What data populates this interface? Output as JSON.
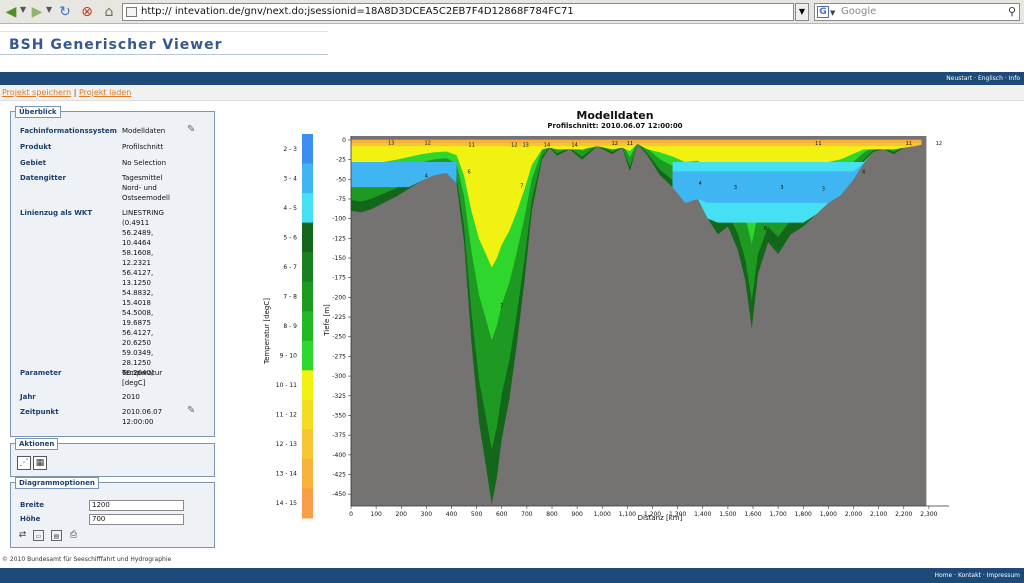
{
  "browser": {
    "url": "http://                intevation.de/gnv/next.do;jsessionid=18A8D3DCEA5C2EB7F4D12868F784FC71",
    "search_placeholder": "Google",
    "search_engine": "G"
  },
  "app": {
    "title": "BSH Generischer Viewer",
    "top_nav": "Neustart · Englisch · Info",
    "project_save": "Projekt speichern",
    "project_separator": "|",
    "project_load": "Projekt laden"
  },
  "overview": {
    "legend": "Überblick",
    "rows": [
      {
        "label": "Fachinformationssystem",
        "value": "Modelldaten"
      },
      {
        "label": "Produkt",
        "value": "Profilschnitt"
      },
      {
        "label": "Gebiet",
        "value": "No Selection"
      },
      {
        "label": "Datengitter",
        "value": "Tagesmittel\nNord- und\nOstseemodell"
      },
      {
        "label": "Linienzug als WKT",
        "value": "LINESTRING\n(0.4911\n56.2489,\n10.4464\n58.1608,\n12.2321\n56.4127,\n13.1250\n54.8832,\n15.4018\n54.5008,\n19.6875\n56.4127,\n20.6250\n59.0349,\n28.1250\n60.2640)"
      },
      {
        "label": "Parameter",
        "value": "Temperatur\n[degC]"
      },
      {
        "label": "Jahr",
        "value": "2010"
      },
      {
        "label": "Zeitpunkt",
        "value": "2010.06.07\n12:00:00"
      }
    ]
  },
  "actions": {
    "legend": "Aktionen"
  },
  "diagram_options": {
    "legend": "Diagrammoptionen",
    "width_label": "Breite",
    "width_value": "1200",
    "height_label": "Höhe",
    "height_value": "700"
  },
  "footer": {
    "copyright": "© 2010 Bundesamt für Seeschifffahrt und Hydrographie",
    "nav": "Home · Kontakt · Impressum"
  },
  "colors": {
    "navy_bar": "#1d4a78",
    "title_blue": "#35588f",
    "link_orange": "#e07a22",
    "seabed_gray": "#747371"
  },
  "chart_data": {
    "type": "heatmap",
    "title": "Modelldaten",
    "subtitle": "Profilschnitt: 2010.06.07 12:00:00",
    "xlabel": "Distanz [km]",
    "ylabel": "Tiefe [m]",
    "xlim": [
      0,
      2380
    ],
    "ylim": [
      -465,
      5
    ],
    "x_ticks": [
      "0",
      "100",
      "200",
      "300",
      "400",
      "500",
      "600",
      "700",
      "800",
      "900",
      "1,000",
      "1,100",
      "1,200",
      "1,300",
      "1,400",
      "1,500",
      "1,600",
      "1,700",
      "1,800",
      "1,900",
      "2,000",
      "2,100",
      "2,200",
      "2,300"
    ],
    "y_ticks": [
      "0",
      "-25",
      "-50",
      "-75",
      "-100",
      "-125",
      "-150",
      "-175",
      "-200",
      "-225",
      "-250",
      "-275",
      "-300",
      "-325",
      "-350",
      "-375",
      "-400",
      "-425",
      "-450"
    ],
    "colorbar": {
      "label": "Temperatur [degC]",
      "classes": [
        {
          "range": "2 - 3",
          "color": "#3c8ff0"
        },
        {
          "range": "3 - 4",
          "color": "#3fb6f2"
        },
        {
          "range": "4 - 5",
          "color": "#45e0f4"
        },
        {
          "range": "5 - 6",
          "color": "#14661a"
        },
        {
          "range": "6 - 7",
          "color": "#1a7f1f"
        },
        {
          "range": "7 - 8",
          "color": "#1e9a22"
        },
        {
          "range": "8 - 9",
          "color": "#22b826"
        },
        {
          "range": "9 - 10",
          "color": "#2ed62e"
        },
        {
          "range": "10 - 11",
          "color": "#f2f212"
        },
        {
          "range": "11 - 12",
          "color": "#f4dc24"
        },
        {
          "range": "12 - 13",
          "color": "#f6c632"
        },
        {
          "range": "13 - 14",
          "color": "#f8b23c"
        },
        {
          "range": "14 - 15",
          "color": "#f89e48"
        }
      ]
    },
    "bathymetry": [
      {
        "x": 0,
        "depth": -90
      },
      {
        "x": 40,
        "depth": -92
      },
      {
        "x": 80,
        "depth": -88
      },
      {
        "x": 130,
        "depth": -80
      },
      {
        "x": 180,
        "depth": -72
      },
      {
        "x": 230,
        "depth": -62
      },
      {
        "x": 280,
        "depth": -52
      },
      {
        "x": 330,
        "depth": -45
      },
      {
        "x": 380,
        "depth": -42
      },
      {
        "x": 420,
        "depth": -55
      },
      {
        "x": 450,
        "depth": -130
      },
      {
        "x": 480,
        "depth": -260
      },
      {
        "x": 510,
        "depth": -360
      },
      {
        "x": 540,
        "depth": -420
      },
      {
        "x": 560,
        "depth": -463
      },
      {
        "x": 580,
        "depth": -430
      },
      {
        "x": 600,
        "depth": -380
      },
      {
        "x": 630,
        "depth": -330
      },
      {
        "x": 660,
        "depth": -260
      },
      {
        "x": 690,
        "depth": -180
      },
      {
        "x": 720,
        "depth": -90
      },
      {
        "x": 760,
        "depth": -25
      },
      {
        "x": 790,
        "depth": -10
      },
      {
        "x": 820,
        "depth": -20
      },
      {
        "x": 870,
        "depth": -12
      },
      {
        "x": 920,
        "depth": -25
      },
      {
        "x": 980,
        "depth": -8
      },
      {
        "x": 1040,
        "depth": -18
      },
      {
        "x": 1080,
        "depth": -10
      },
      {
        "x": 1110,
        "depth": -40
      },
      {
        "x": 1140,
        "depth": -5
      },
      {
        "x": 1180,
        "depth": -20
      },
      {
        "x": 1230,
        "depth": -45
      },
      {
        "x": 1280,
        "depth": -60
      },
      {
        "x": 1330,
        "depth": -80
      },
      {
        "x": 1380,
        "depth": -75
      },
      {
        "x": 1420,
        "depth": -100
      },
      {
        "x": 1460,
        "depth": -120
      },
      {
        "x": 1500,
        "depth": -110
      },
      {
        "x": 1540,
        "depth": -140
      },
      {
        "x": 1570,
        "depth": -180
      },
      {
        "x": 1595,
        "depth": -240
      },
      {
        "x": 1620,
        "depth": -170
      },
      {
        "x": 1660,
        "depth": -130
      },
      {
        "x": 1700,
        "depth": -145
      },
      {
        "x": 1750,
        "depth": -120
      },
      {
        "x": 1800,
        "depth": -110
      },
      {
        "x": 1850,
        "depth": -95
      },
      {
        "x": 1900,
        "depth": -80
      },
      {
        "x": 1950,
        "depth": -70
      },
      {
        "x": 2000,
        "depth": -50
      },
      {
        "x": 2040,
        "depth": -30
      },
      {
        "x": 2080,
        "depth": -15
      },
      {
        "x": 2120,
        "depth": -12
      },
      {
        "x": 2160,
        "depth": -18
      },
      {
        "x": 2200,
        "depth": -10
      },
      {
        "x": 2240,
        "depth": -8
      },
      {
        "x": 2270,
        "depth": -6
      }
    ],
    "contour_labels": [
      {
        "x": 160,
        "depth": -3,
        "text": "13"
      },
      {
        "x": 305,
        "depth": -3,
        "text": "12"
      },
      {
        "x": 480,
        "depth": -6,
        "text": "11"
      },
      {
        "x": 650,
        "depth": -6,
        "text": "12"
      },
      {
        "x": 695,
        "depth": -6,
        "text": "13"
      },
      {
        "x": 780,
        "depth": -6,
        "text": "14"
      },
      {
        "x": 890,
        "depth": -6,
        "text": "14"
      },
      {
        "x": 1050,
        "depth": -4,
        "text": "12"
      },
      {
        "x": 1110,
        "depth": -4,
        "text": "11"
      },
      {
        "x": 1860,
        "depth": -4,
        "text": "11"
      },
      {
        "x": 2220,
        "depth": -4,
        "text": "11"
      },
      {
        "x": 2340,
        "depth": -4,
        "text": "12"
      },
      {
        "x": 300,
        "depth": -45,
        "text": "4"
      },
      {
        "x": 470,
        "depth": -40,
        "text": "6"
      },
      {
        "x": 680,
        "depth": -58,
        "text": "7"
      },
      {
        "x": 600,
        "depth": -210,
        "text": "7"
      },
      {
        "x": 1390,
        "depth": -55,
        "text": "4"
      },
      {
        "x": 1530,
        "depth": -60,
        "text": "3"
      },
      {
        "x": 1715,
        "depth": -60,
        "text": "3"
      },
      {
        "x": 1880,
        "depth": -62,
        "text": "3"
      },
      {
        "x": 2040,
        "depth": -40,
        "text": "4"
      },
      {
        "x": 1650,
        "depth": -112,
        "text": "6"
      }
    ]
  }
}
